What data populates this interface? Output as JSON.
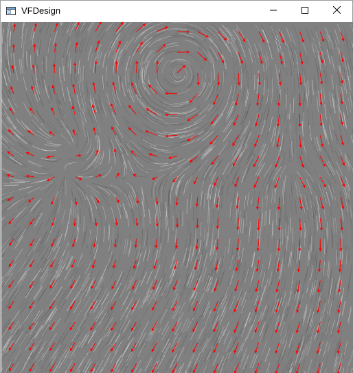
{
  "window": {
    "title": "VFDesign"
  },
  "icons": {
    "app": "app-window-icon",
    "minimize": "minimize-icon",
    "maximize": "maximize-icon",
    "close": "close-icon"
  },
  "visualization": {
    "type": "vector-field-lic",
    "background_color": "#808080",
    "streak_color": "#e6e6e6",
    "arrow_color": "#ff0000",
    "grid": {
      "cols": 17,
      "rows": 17
    }
  }
}
